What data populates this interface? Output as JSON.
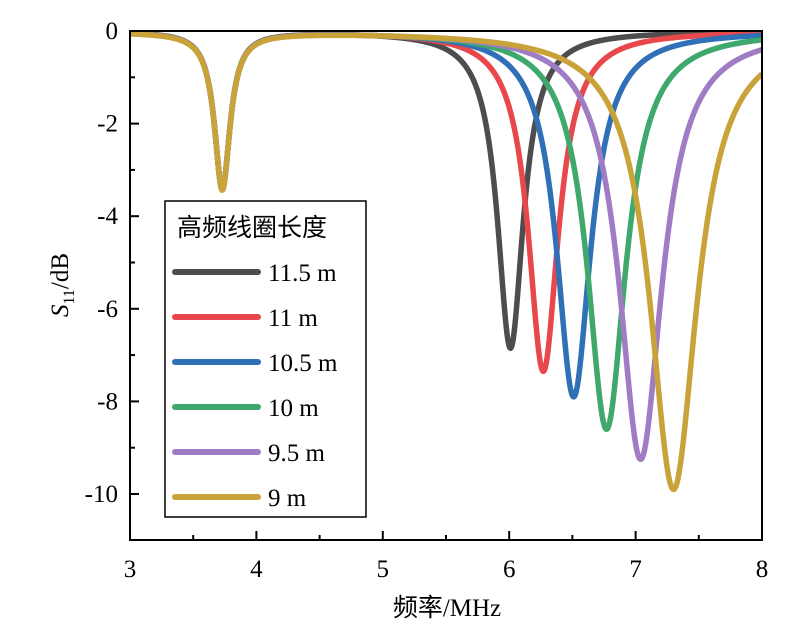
{
  "chart_data": {
    "type": "line",
    "title": "",
    "xlabel": "频率/MHz",
    "ylabel": {
      "main": "S",
      "sub": "11",
      "rest": "/dB"
    },
    "xlim": [
      3,
      8
    ],
    "ylim": [
      -11,
      0
    ],
    "xticks": [
      3,
      4,
      5,
      6,
      7,
      8
    ],
    "yticks": [
      0,
      -2,
      -4,
      -6,
      -8,
      -10
    ],
    "grid": false,
    "legend": {
      "title": "高频线圈长度",
      "placement": "lower-left"
    },
    "shared_dip": {
      "x": 3.73,
      "y": -3.4
    },
    "series": [
      {
        "name": "11.5 m",
        "color": "#4d4d4d",
        "dip_x": 6.01,
        "dip_y": -6.85
      },
      {
        "name": "11 m",
        "color": "#e8474c",
        "dip_x": 6.27,
        "dip_y": -7.35
      },
      {
        "name": "10.5 m",
        "color": "#2f70b6",
        "dip_x": 6.51,
        "dip_y": -7.9
      },
      {
        "name": "10 m",
        "color": "#3fa86d",
        "dip_x": 6.77,
        "dip_y": -8.6
      },
      {
        "name": "9.5 m",
        "color": "#a07cc4",
        "dip_x": 7.04,
        "dip_y": -9.25
      },
      {
        "name": "9 m",
        "color": "#c9a23a",
        "dip_x": 7.3,
        "dip_y": -9.9
      }
    ]
  }
}
